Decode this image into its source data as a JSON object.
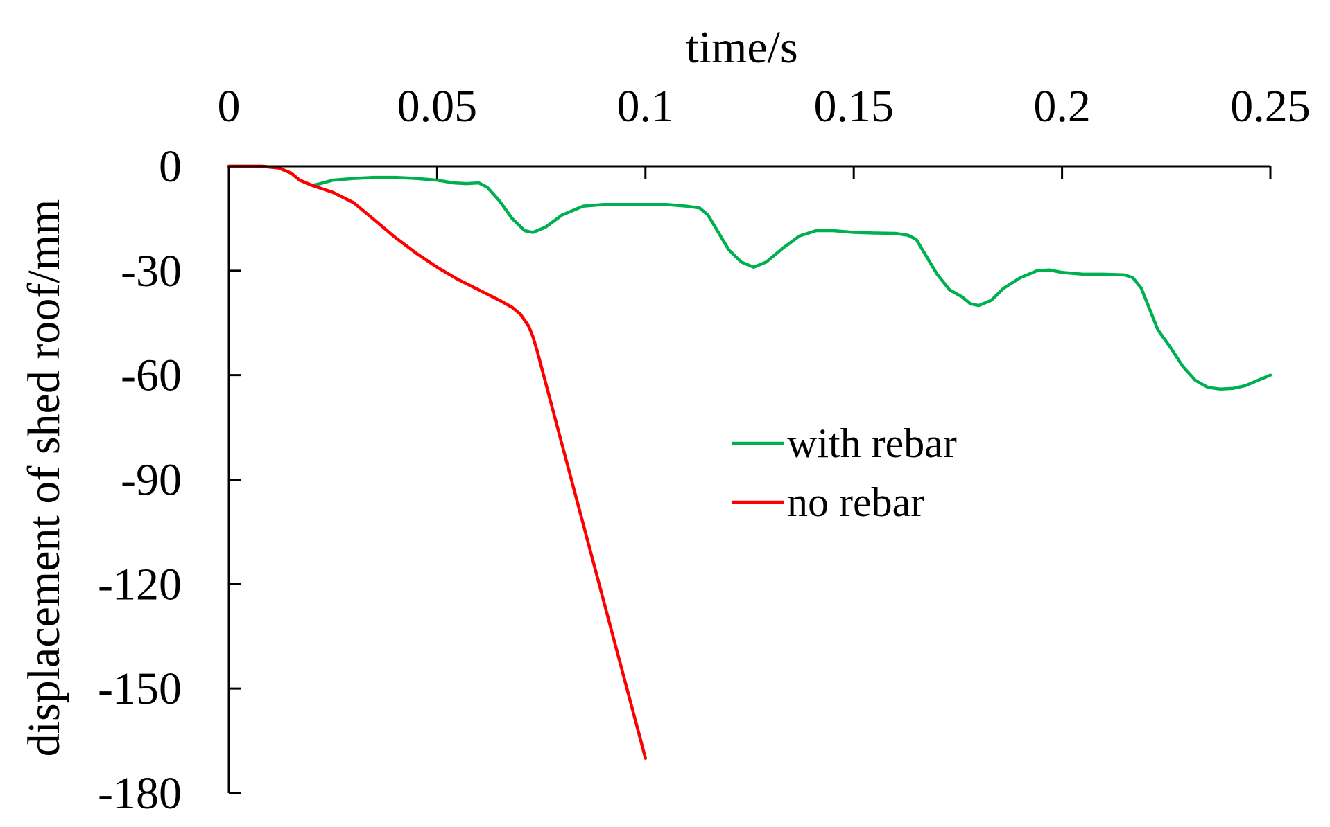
{
  "chart_data": {
    "type": "line",
    "title": "",
    "xlabel": "time/s",
    "ylabel": "displacement of shed roof/mm",
    "xlim": [
      0,
      0.25
    ],
    "ylim": [
      -180,
      0
    ],
    "x_axis_position": "top",
    "x_ticks": [
      0,
      0.05,
      0.1,
      0.15,
      0.2,
      0.25
    ],
    "x_tick_labels": [
      "0",
      "0.05",
      "0.1",
      "0.15",
      "0.2",
      "0.25"
    ],
    "y_ticks": [
      0,
      -30,
      -60,
      -90,
      -120,
      -150,
      -180
    ],
    "y_tick_labels": [
      "0",
      "-30",
      "-60",
      "-90",
      "-120",
      "-150",
      "-180"
    ],
    "grid": false,
    "legend_position": "center-right",
    "series": [
      {
        "name": "with rebar",
        "color": "#00b050",
        "points": [
          [
            0,
            0
          ],
          [
            0.008,
            0
          ],
          [
            0.012,
            -0.5
          ],
          [
            0.015,
            -2
          ],
          [
            0.017,
            -4
          ],
          [
            0.02,
            -5.5
          ],
          [
            0.022,
            -5
          ],
          [
            0.025,
            -4
          ],
          [
            0.03,
            -3.5
          ],
          [
            0.035,
            -3.2
          ],
          [
            0.04,
            -3.2
          ],
          [
            0.045,
            -3.5
          ],
          [
            0.05,
            -4
          ],
          [
            0.054,
            -4.8
          ],
          [
            0.057,
            -5
          ],
          [
            0.06,
            -4.8
          ],
          [
            0.062,
            -6
          ],
          [
            0.065,
            -10
          ],
          [
            0.068,
            -15
          ],
          [
            0.071,
            -18.5
          ],
          [
            0.073,
            -19
          ],
          [
            0.076,
            -17.5
          ],
          [
            0.08,
            -14
          ],
          [
            0.085,
            -11.5
          ],
          [
            0.09,
            -11
          ],
          [
            0.1,
            -11
          ],
          [
            0.105,
            -11
          ],
          [
            0.11,
            -11.5
          ],
          [
            0.113,
            -12
          ],
          [
            0.115,
            -14
          ],
          [
            0.117,
            -18
          ],
          [
            0.12,
            -24
          ],
          [
            0.123,
            -27.5
          ],
          [
            0.126,
            -29
          ],
          [
            0.129,
            -27.5
          ],
          [
            0.133,
            -23.5
          ],
          [
            0.137,
            -20
          ],
          [
            0.141,
            -18.5
          ],
          [
            0.145,
            -18.5
          ],
          [
            0.15,
            -19
          ],
          [
            0.155,
            -19.2
          ],
          [
            0.16,
            -19.3
          ],
          [
            0.163,
            -19.8
          ],
          [
            0.165,
            -21
          ],
          [
            0.167,
            -25
          ],
          [
            0.17,
            -31
          ],
          [
            0.173,
            -35.5
          ],
          [
            0.176,
            -37.5
          ],
          [
            0.178,
            -39.5
          ],
          [
            0.18,
            -40
          ],
          [
            0.183,
            -38.5
          ],
          [
            0.186,
            -35
          ],
          [
            0.19,
            -32
          ],
          [
            0.194,
            -30
          ],
          [
            0.197,
            -29.8
          ],
          [
            0.2,
            -30.5
          ],
          [
            0.205,
            -31
          ],
          [
            0.21,
            -31
          ],
          [
            0.215,
            -31.2
          ],
          [
            0.217,
            -32
          ],
          [
            0.219,
            -35
          ],
          [
            0.221,
            -41
          ],
          [
            0.223,
            -47
          ],
          [
            0.226,
            -52
          ],
          [
            0.229,
            -57.5
          ],
          [
            0.232,
            -61.5
          ],
          [
            0.235,
            -63.5
          ],
          [
            0.238,
            -64
          ],
          [
            0.241,
            -63.8
          ],
          [
            0.244,
            -63
          ],
          [
            0.247,
            -61.5
          ],
          [
            0.25,
            -60
          ]
        ]
      },
      {
        "name": "no rebar",
        "color": "#ff0000",
        "points": [
          [
            0,
            0
          ],
          [
            0.008,
            0
          ],
          [
            0.012,
            -0.5
          ],
          [
            0.015,
            -2
          ],
          [
            0.017,
            -4
          ],
          [
            0.02,
            -5.5
          ],
          [
            0.025,
            -7.5
          ],
          [
            0.03,
            -10.5
          ],
          [
            0.035,
            -15.5
          ],
          [
            0.04,
            -20.5
          ],
          [
            0.045,
            -25
          ],
          [
            0.05,
            -29
          ],
          [
            0.055,
            -32.5
          ],
          [
            0.06,
            -35.5
          ],
          [
            0.065,
            -38.5
          ],
          [
            0.068,
            -40.5
          ],
          [
            0.07,
            -42.5
          ],
          [
            0.072,
            -46
          ],
          [
            0.073,
            -49
          ],
          [
            0.074,
            -53
          ],
          [
            0.1,
            -170
          ]
        ]
      }
    ]
  }
}
